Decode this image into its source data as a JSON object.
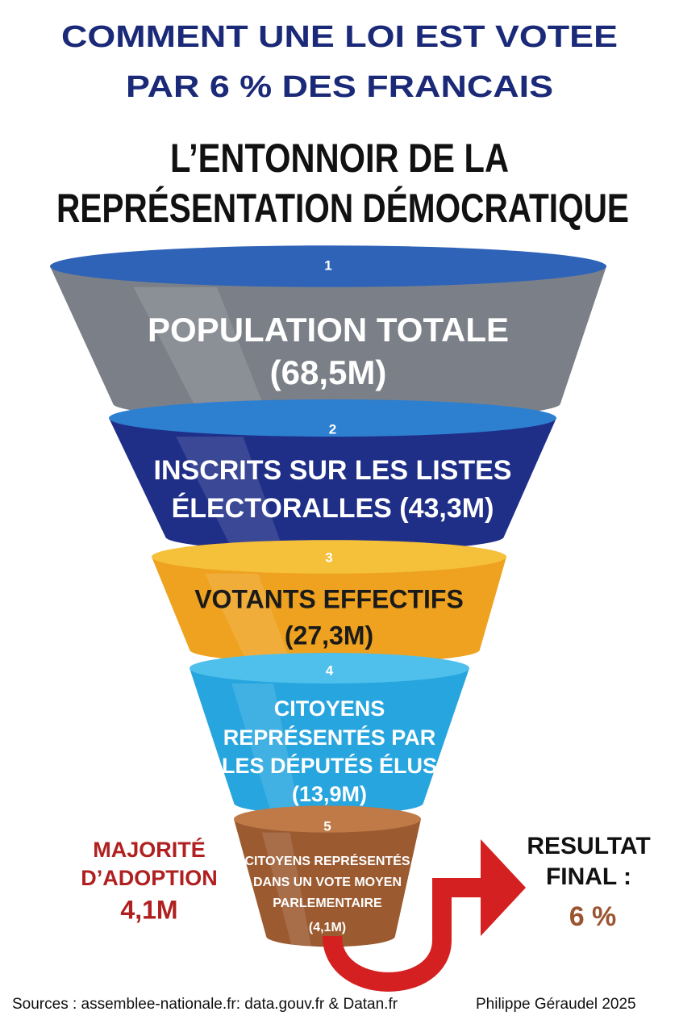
{
  "title": {
    "line1": "COMMENT UNE LOI EST VOTEE",
    "line2": "PAR 6 % DES FRANCAIS"
  },
  "subtitle": {
    "line1": "L’ENTONNOIR DE LA",
    "line2": "REPRÉSENTATION DÉMOCRATIQUE"
  },
  "stages": [
    {
      "number": "1",
      "lines": [
        "POPULATION TOTALE",
        "(68,5M)"
      ]
    },
    {
      "number": "2",
      "lines": [
        "INSCRITS SUR LES LISTES",
        "ÉLECTORALLES (43,3M)"
      ]
    },
    {
      "number": "3",
      "lines": [
        "VOTANTS EFFECTIFS",
        "(27,3M)"
      ]
    },
    {
      "number": "4",
      "lines": [
        "CITOYENS",
        "REPRÉSENTÉS PAR",
        "LES DÉPUTÉS ÉLUS",
        "(13,9M)"
      ]
    },
    {
      "number": "5",
      "lines": [
        "CITOYENS REPRÉSENTÉS",
        "DANS UN VOTE MOYEN",
        "PARLEMENTAIRE",
        "(4,1M)"
      ]
    }
  ],
  "left_note": {
    "lines": [
      "MAJORITÉ",
      "D’ADOPTION",
      "4,1M"
    ]
  },
  "result": {
    "lines": [
      "RESULTAT",
      "FINAL :"
    ],
    "value": "6 %"
  },
  "footer": {
    "sources": "Sources : assemblee-nationale.fr: data.gouv.fr & Datan.fr",
    "author": "Philippe Géraudel 2025"
  }
}
